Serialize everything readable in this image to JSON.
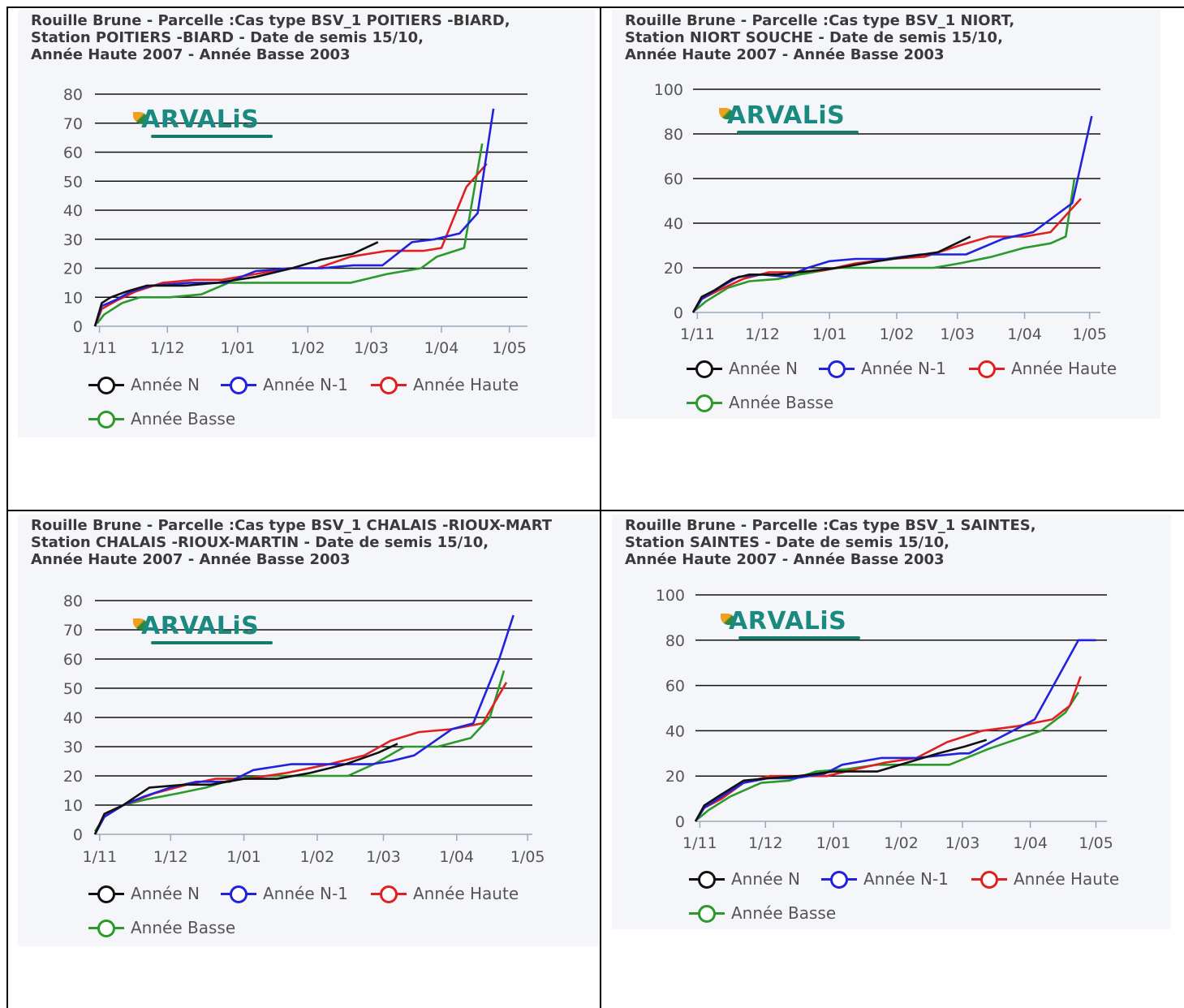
{
  "colors": {
    "annee_n": "#111111",
    "annee_n1": "#2222dd",
    "annee_haute": "#e02020",
    "annee_basse": "#2a9a2a"
  },
  "logo_text": "ARVALiS",
  "legend": [
    "Année N",
    "Année N-1",
    "Année Haute",
    "Année Basse"
  ],
  "chart_data": [
    {
      "type": "line",
      "title_lines": [
        "Rouille Brune - Parcelle :Cas type BSV_1 POITIERS -BIARD,",
        "Station POITIERS -BIARD - Date de semis 15/10,",
        "Année Haute 2007 - Année Basse 2003"
      ],
      "ylim": [
        0,
        80
      ],
      "yticks": [
        0,
        10,
        20,
        30,
        40,
        50,
        60,
        70,
        80
      ],
      "xticks": [
        {
          "label": "1/11",
          "day": 17
        },
        {
          "label": "1/12",
          "day": 47
        },
        {
          "label": "1/01",
          "day": 78
        },
        {
          "label": "1/02",
          "day": 109
        },
        {
          "label": "1/03",
          "day": 137
        },
        {
          "label": "1/04",
          "day": 168
        },
        {
          "label": "1/05",
          "day": 198
        }
      ],
      "xmax": 206,
      "series": [
        {
          "name": "Année N",
          "key": "annee_n",
          "x": [
            15,
            18,
            22,
            29,
            38,
            55,
            69,
            86,
            102,
            115,
            129,
            140
          ],
          "y": [
            0,
            8,
            10,
            12,
            14,
            14,
            15,
            17,
            20,
            23,
            25,
            29
          ]
        },
        {
          "name": "Année N-1",
          "key": "annee_n1",
          "x": [
            15,
            18,
            24,
            31,
            40,
            57,
            73,
            86,
            102,
            115,
            129,
            142,
            155,
            165,
            176,
            184,
            191
          ],
          "y": [
            0,
            7,
            9,
            12,
            14,
            15,
            15,
            19,
            20,
            20,
            21,
            21,
            29,
            30,
            32,
            39,
            75
          ]
        },
        {
          "name": "Année Haute",
          "key": "annee_haute",
          "x": [
            15,
            18,
            25,
            33,
            45,
            59,
            71,
            86,
            100,
            113,
            128,
            144,
            160,
            168,
            179,
            188
          ],
          "y": [
            0,
            6,
            9,
            12,
            15,
            16,
            16,
            18,
            20,
            20,
            24,
            26,
            26,
            27,
            48,
            56
          ]
        },
        {
          "name": "Année Basse",
          "key": "annee_basse",
          "x": [
            16,
            19,
            27,
            35,
            48,
            62,
            74,
            88,
            100,
            115,
            128,
            144,
            159,
            166,
            178,
            186
          ],
          "y": [
            1,
            4,
            8,
            10,
            10,
            11,
            15,
            15,
            15,
            15,
            15,
            18,
            20,
            24,
            27,
            63
          ]
        }
      ]
    },
    {
      "type": "line",
      "title_lines": [
        "Rouille Brune - Parcelle :Cas type BSV_1 NIORT,",
        "Station NIORT SOUCHE - Date de semis 15/10,",
        "Année Haute 2007 - Année Basse 2003"
      ],
      "ylim": [
        0,
        100
      ],
      "yticks": [
        0,
        20,
        40,
        60,
        80,
        100
      ],
      "xticks": [
        {
          "label": "1/11",
          "day": 17
        },
        {
          "label": "1/12",
          "day": 47
        },
        {
          "label": "1/01",
          "day": 78
        },
        {
          "label": "1/02",
          "day": 109
        },
        {
          "label": "1/03",
          "day": 137
        },
        {
          "label": "1/04",
          "day": 168
        },
        {
          "label": "1/05",
          "day": 198
        }
      ],
      "xmax": 203,
      "series": [
        {
          "name": "Année N",
          "key": "annee_n",
          "x": [
            15,
            19,
            25,
            33,
            41,
            54,
            64,
            82,
            100,
            114,
            128,
            143
          ],
          "y": [
            0,
            7,
            10,
            15,
            17,
            17,
            18,
            20,
            23,
            25,
            27,
            34
          ]
        },
        {
          "name": "Année N-1",
          "key": "annee_n1",
          "x": [
            15,
            19,
            27,
            36,
            47,
            58,
            68,
            78,
            90,
            104,
            120,
            141,
            158,
            172,
            190,
            199
          ],
          "y": [
            0,
            6,
            11,
            16,
            17,
            16,
            20,
            23,
            24,
            24,
            26,
            26,
            33,
            36,
            49,
            88
          ]
        },
        {
          "name": "Année Haute",
          "key": "annee_haute",
          "x": [
            15,
            19,
            27,
            38,
            50,
            62,
            76,
            90,
            106,
            122,
            138,
            152,
            168,
            180,
            194
          ],
          "y": [
            0,
            6,
            10,
            15,
            18,
            18,
            19,
            22,
            24,
            25,
            30,
            34,
            34,
            36,
            51
          ]
        },
        {
          "name": "Année Basse",
          "key": "annee_basse",
          "x": [
            16,
            21,
            31,
            41,
            54,
            64,
            82,
            98,
            111,
            126,
            138,
            153,
            168,
            180,
            187,
            191
          ],
          "y": [
            1,
            5,
            11,
            14,
            15,
            17,
            20,
            20,
            20,
            20,
            22,
            25,
            29,
            31,
            34,
            60
          ]
        }
      ]
    },
    {
      "type": "line",
      "title_lines": [
        "Rouille Brune - Parcelle :Cas type BSV_1 CHALAIS -RIOUX-MART",
        "Station CHALAIS -RIOUX-MARTIN - Date de semis 15/10,",
        "Année Haute 2007 - Année Basse 2003"
      ],
      "ylim": [
        0,
        80
      ],
      "yticks": [
        0,
        10,
        20,
        30,
        40,
        50,
        60,
        70,
        80
      ],
      "xticks": [
        {
          "label": "1/11",
          "day": 17
        },
        {
          "label": "1/12",
          "day": 47
        },
        {
          "label": "1/01",
          "day": 78
        },
        {
          "label": "1/02",
          "day": 109
        },
        {
          "label": "1/03",
          "day": 137
        },
        {
          "label": "1/04",
          "day": 168
        },
        {
          "label": "1/05",
          "day": 198
        }
      ],
      "xmax": 200,
      "series": [
        {
          "name": "Année N",
          "key": "annee_n",
          "x": [
            15,
            19,
            27,
            38,
            53,
            64,
            78,
            92,
            106,
            121,
            135,
            143
          ],
          "y": [
            0,
            7,
            10,
            16,
            17,
            17,
            19,
            19,
            21,
            24,
            28,
            31
          ]
        },
        {
          "name": "Année N-1",
          "key": "annee_n1",
          "x": [
            15,
            19,
            27,
            36,
            47,
            58,
            72,
            82,
            98,
            114,
            132,
            140,
            150,
            166,
            175,
            186,
            192
          ],
          "y": [
            0,
            6,
            10,
            13,
            16,
            18,
            18,
            22,
            24,
            24,
            24,
            25,
            27,
            36,
            38,
            60,
            75
          ]
        },
        {
          "name": "Année Haute",
          "key": "annee_haute",
          "x": [
            15,
            19,
            27,
            40,
            54,
            66,
            79,
            96,
            114,
            129,
            140,
            152,
            166,
            179,
            189
          ],
          "y": [
            0,
            7,
            10,
            14,
            17,
            19,
            19,
            21,
            24,
            27,
            32,
            35,
            36,
            38,
            52
          ]
        },
        {
          "name": "Année Basse",
          "key": "annee_basse",
          "x": [
            15,
            19,
            27,
            37,
            50,
            62,
            74,
            88,
            104,
            122,
            133,
            146,
            160,
            174,
            182,
            188
          ],
          "y": [
            1,
            6,
            10,
            12,
            14,
            16,
            19,
            20,
            20,
            20,
            24,
            30,
            30,
            33,
            40,
            56
          ]
        }
      ]
    },
    {
      "type": "line",
      "title_lines": [
        "Rouille Brune - Parcelle :Cas type BSV_1 SAINTES,",
        "Station SAINTES - Date de semis 15/10,",
        "Année Haute 2007 - Année Basse 2003"
      ],
      "ylim": [
        0,
        100
      ],
      "yticks": [
        0,
        20,
        40,
        60,
        80,
        100
      ],
      "xticks": [
        {
          "label": "1/11",
          "day": 17
        },
        {
          "label": "1/12",
          "day": 47
        },
        {
          "label": "1/01",
          "day": 78
        },
        {
          "label": "1/02",
          "day": 109
        },
        {
          "label": "1/03",
          "day": 137
        },
        {
          "label": "1/04",
          "day": 168
        },
        {
          "label": "1/05",
          "day": 198
        }
      ],
      "xmax": 203,
      "series": [
        {
          "name": "Année N",
          "key": "annee_n",
          "x": [
            15,
            19,
            27,
            37,
            48,
            62,
            78,
            98,
            112,
            126,
            138,
            148
          ],
          "y": [
            0,
            7,
            12,
            18,
            19,
            20,
            22,
            22,
            26,
            30,
            33,
            36
          ]
        },
        {
          "name": "Année N-1",
          "key": "annee_n1",
          "x": [
            15,
            19,
            27,
            37,
            48,
            60,
            74,
            82,
            100,
            116,
            136,
            140,
            152,
            170,
            182,
            190,
            198
          ],
          "y": [
            0,
            6,
            11,
            17,
            19,
            19,
            21,
            25,
            28,
            28,
            30,
            30,
            36,
            45,
            66,
            80,
            80
          ]
        },
        {
          "name": "Année Haute",
          "key": "annee_haute",
          "x": [
            15,
            19,
            27,
            37,
            49,
            61,
            75,
            88,
            102,
            116,
            130,
            146,
            162,
            178,
            186,
            191
          ],
          "y": [
            0,
            6,
            10,
            17,
            20,
            20,
            20,
            23,
            26,
            28,
            35,
            40,
            42,
            45,
            51,
            64
          ]
        },
        {
          "name": "Année Basse",
          "key": "annee_basse",
          "x": [
            16,
            21,
            31,
            45,
            58,
            70,
            84,
            98,
            116,
            131,
            149,
            164,
            173,
            184,
            190
          ],
          "y": [
            1,
            5,
            11,
            17,
            18,
            22,
            23,
            25,
            25,
            25,
            32,
            37,
            40,
            48,
            57
          ]
        }
      ]
    }
  ]
}
